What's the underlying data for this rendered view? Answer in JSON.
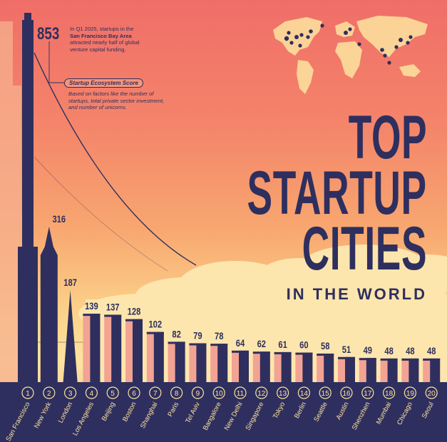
{
  "header": {
    "title_line1": "TOP",
    "title_line2": "STARTUP",
    "title_line3": "CITIES",
    "subtitle": "IN THE WORLD"
  },
  "annotation": {
    "top_value": "853",
    "note_part1": "In Q1 2025, startups in the",
    "note_highlight": "San Francisco Bay Area",
    "note_part2": "attracted nearly half of global",
    "note_part3": "venture capital funding.",
    "score_label": "Startup Ecosystem Score",
    "score_desc_1": "Based on factors like the number of",
    "score_desc_2": "startups, total private sector investment,",
    "score_desc_3": "and number of unicorns."
  },
  "colors": {
    "navy": "#2e2f5e",
    "building_light": "#f2a393",
    "bg_top": "#f06e68",
    "bg_bottom": "#fde3a0"
  },
  "chart_data": {
    "type": "bar",
    "title": "TOP STARTUP CITIES IN THE WORLD",
    "ylabel": "Startup Ecosystem Score",
    "categories": [
      "San Francisco",
      "New York",
      "London",
      "Los Angeles",
      "Beijing",
      "Boston",
      "Shanghai",
      "Paris",
      "Tel Aviv",
      "Bangalore",
      "New Delhi",
      "Singapore",
      "Tokyo",
      "Berlin",
      "Seattle",
      "Austin",
      "Shenzhen",
      "Mumbai",
      "Chicago",
      "Seoul"
    ],
    "ranks": [
      "1",
      "2",
      "3",
      "4",
      "5",
      "6",
      "7",
      "8",
      "9",
      "10",
      "11",
      "12",
      "13",
      "14",
      "15",
      "16",
      "17",
      "18",
      "19",
      "20"
    ],
    "values": [
      853,
      316,
      187,
      139,
      137,
      128,
      102,
      82,
      79,
      78,
      64,
      62,
      61,
      60,
      58,
      51,
      49,
      48,
      48,
      48
    ],
    "value_labels": [
      "853",
      "316",
      "187",
      "139",
      "137",
      "128",
      "102",
      "82",
      "79",
      "78",
      "64",
      "62",
      "61",
      "60",
      "58",
      "51",
      "49",
      "48",
      "48",
      "48"
    ]
  }
}
